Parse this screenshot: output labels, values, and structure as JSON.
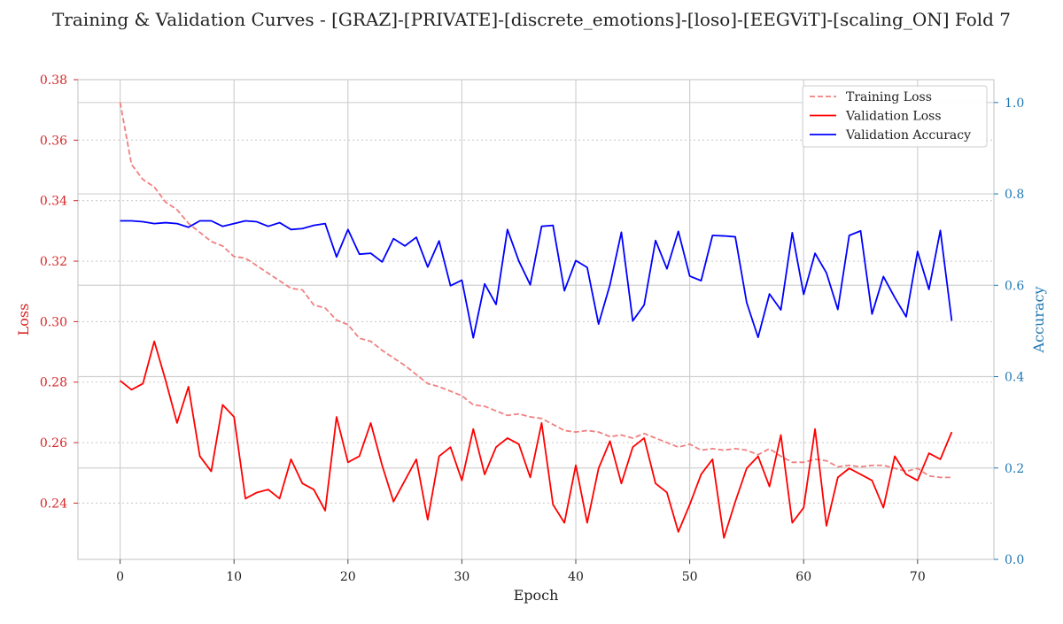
{
  "chart_data": {
    "type": "line",
    "title": "Training & Validation Curves - [GRAZ]-[PRIVATE]-[discrete_emotions]-[loso]-[EEGViT]-[scaling_ON] Fold 7",
    "xlabel": "Epoch",
    "ylabel_left": "Loss",
    "ylabel_right": "Accuracy",
    "xlim": [
      -3.7,
      76.7
    ],
    "ylim_left": [
      0.2214,
      0.38
    ],
    "ylim_right": [
      0.0,
      1.05
    ],
    "x_ticks": [
      0,
      10,
      20,
      30,
      40,
      50,
      60,
      70
    ],
    "y_ticks_left": [
      0.24,
      0.26,
      0.28,
      0.3,
      0.32,
      0.34,
      0.36,
      0.38
    ],
    "y_ticks_right": [
      0.0,
      0.2,
      0.4,
      0.6,
      0.8,
      1.0
    ],
    "grid": true,
    "legend_position": "top-right",
    "colors": {
      "loss_axis": "#d62728",
      "accuracy_axis": "#1f77b4",
      "train_loss": "#f08080",
      "val_loss": "#ff0000",
      "val_acc": "#0000ff"
    },
    "x": [
      0,
      1,
      2,
      3,
      4,
      5,
      6,
      7,
      8,
      9,
      10,
      11,
      12,
      13,
      14,
      15,
      16,
      17,
      18,
      19,
      20,
      21,
      22,
      23,
      24,
      25,
      26,
      27,
      28,
      29,
      30,
      31,
      32,
      33,
      34,
      35,
      36,
      37,
      38,
      39,
      40,
      41,
      42,
      43,
      44,
      45,
      46,
      47,
      48,
      49,
      50,
      51,
      52,
      53,
      54,
      55,
      56,
      57,
      58,
      59,
      60,
      61,
      62,
      63,
      64,
      65,
      66,
      67,
      68,
      69,
      70,
      71,
      72,
      73
    ],
    "series": [
      {
        "name": "Training Loss",
        "axis": "left",
        "style": "dashed",
        "values": [
          0.3725,
          0.352,
          0.347,
          0.3445,
          0.3395,
          0.337,
          0.3325,
          0.3295,
          0.3265,
          0.325,
          0.3215,
          0.321,
          0.3185,
          0.316,
          0.3135,
          0.311,
          0.3105,
          0.3055,
          0.3045,
          0.3005,
          0.299,
          0.2945,
          0.2935,
          0.2905,
          0.288,
          0.2855,
          0.2825,
          0.2795,
          0.2785,
          0.277,
          0.2755,
          0.2725,
          0.272,
          0.2705,
          0.269,
          0.2695,
          0.2685,
          0.268,
          0.266,
          0.264,
          0.2635,
          0.264,
          0.2635,
          0.262,
          0.2625,
          0.2615,
          0.263,
          0.2615,
          0.26,
          0.2585,
          0.2595,
          0.2575,
          0.258,
          0.2575,
          0.258,
          0.2575,
          0.256,
          0.258,
          0.2555,
          0.2535,
          0.2535,
          0.2545,
          0.254,
          0.252,
          0.2525,
          0.252,
          0.2525,
          0.2525,
          0.2515,
          0.2505,
          0.2515,
          0.249,
          0.2485,
          0.2485
        ]
      },
      {
        "name": "Validation Loss",
        "axis": "left",
        "style": "solid",
        "values": [
          0.2805,
          0.2775,
          0.2795,
          0.2935,
          0.2805,
          0.2665,
          0.2785,
          0.2555,
          0.2505,
          0.2725,
          0.2685,
          0.2415,
          0.2435,
          0.2445,
          0.2415,
          0.2545,
          0.2465,
          0.2445,
          0.2375,
          0.2685,
          0.2535,
          0.2555,
          0.2665,
          0.2525,
          0.2405,
          0.2475,
          0.2545,
          0.2345,
          0.2555,
          0.2585,
          0.2475,
          0.2645,
          0.2495,
          0.2585,
          0.2615,
          0.2595,
          0.2485,
          0.2665,
          0.2395,
          0.2335,
          0.2525,
          0.2335,
          0.2515,
          0.2605,
          0.2465,
          0.2585,
          0.2615,
          0.2465,
          0.2435,
          0.2305,
          0.2395,
          0.2495,
          0.2545,
          0.2285,
          0.2405,
          0.2515,
          0.2555,
          0.2455,
          0.2625,
          0.2335,
          0.2385,
          0.2645,
          0.2325,
          0.2485,
          0.2515,
          0.2495,
          0.2475,
          0.2385,
          0.2555,
          0.2495,
          0.2475,
          0.2565,
          0.2545,
          0.2635
        ]
      },
      {
        "name": "Validation Accuracy",
        "axis": "right",
        "style": "solid",
        "values": [
          0.741,
          0.741,
          0.739,
          0.735,
          0.737,
          0.735,
          0.727,
          0.741,
          0.741,
          0.729,
          0.735,
          0.741,
          0.739,
          0.729,
          0.737,
          0.722,
          0.724,
          0.731,
          0.735,
          0.662,
          0.722,
          0.668,
          0.67,
          0.651,
          0.702,
          0.686,
          0.705,
          0.64,
          0.697,
          0.599,
          0.611,
          0.485,
          0.603,
          0.558,
          0.722,
          0.653,
          0.601,
          0.729,
          0.731,
          0.588,
          0.654,
          0.639,
          0.515,
          0.601,
          0.716,
          0.522,
          0.557,
          0.698,
          0.636,
          0.718,
          0.62,
          0.61,
          0.709,
          0.708,
          0.706,
          0.562,
          0.486,
          0.581,
          0.546,
          0.715,
          0.58,
          0.67,
          0.627,
          0.547,
          0.709,
          0.719,
          0.537,
          0.619,
          0.573,
          0.531,
          0.674,
          0.591,
          0.72,
          0.522
        ]
      }
    ]
  }
}
